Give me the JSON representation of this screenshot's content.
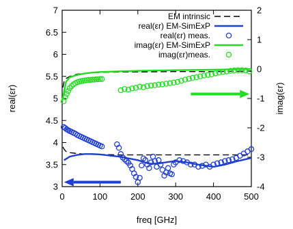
{
  "chart_data": {
    "type": "line",
    "xlabel": "freq [GHz]",
    "ylabel_left": "real(εr)",
    "ylabel_right": "imag(εr)",
    "xlim": [
      0,
      500
    ],
    "ylim_left": [
      3,
      7
    ],
    "ylim_right": [
      -4,
      2
    ],
    "x_ticks": [
      "0",
      "100",
      "200",
      "300",
      "400",
      "500"
    ],
    "y_left_ticks": [
      "3",
      "3.5",
      "4",
      "4.5",
      "5",
      "5.5",
      "6",
      "6.5",
      "7"
    ],
    "y_right_ticks": [
      "-4",
      "-3",
      "-2",
      "-1",
      "0",
      "1",
      "2"
    ],
    "grid": false,
    "legend_position": "top-right",
    "colors": {
      "intrinsic": "#000000",
      "real": "#1f3fd0",
      "imag": "#22dd22"
    },
    "series": [
      {
        "name": "EM intrinsic",
        "axis": "left",
        "style": "dashed",
        "x": [
          2,
          5,
          10,
          20,
          40,
          60,
          80,
          100,
          150,
          200,
          300,
          400,
          500
        ],
        "y": [
          3.9,
          3.85,
          3.8,
          3.77,
          3.75,
          3.74,
          3.73,
          3.73,
          3.72,
          3.72,
          3.72,
          3.72,
          3.72
        ]
      },
      {
        "name": "EM intrinsic",
        "axis": "left",
        "style": "dashed",
        "x": [
          2,
          5,
          10,
          20,
          40,
          60,
          80,
          100,
          150,
          200,
          300,
          400,
          500
        ],
        "y": [
          5.25,
          5.38,
          5.45,
          5.5,
          5.55,
          5.57,
          5.58,
          5.59,
          5.6,
          5.6,
          5.61,
          5.61,
          5.62
        ]
      },
      {
        "name": "real(εr) EM-SimExP",
        "axis": "left",
        "style": "solid",
        "x": [
          5,
          20,
          40,
          60,
          80,
          100,
          150,
          200,
          230,
          250,
          280,
          300,
          330,
          360,
          400,
          430,
          460,
          500
        ],
        "y": [
          3.6,
          3.68,
          3.72,
          3.74,
          3.74,
          3.73,
          3.68,
          3.6,
          3.52,
          3.52,
          3.56,
          3.58,
          3.55,
          3.5,
          3.45,
          3.5,
          3.57,
          3.65
        ]
      },
      {
        "name": "real(εr) meas.",
        "axis": "left",
        "style": "marker",
        "x": [
          4,
          8,
          12,
          16,
          20,
          25,
          30,
          35,
          40,
          45,
          50,
          55,
          60,
          65,
          70,
          75,
          80,
          85,
          90,
          95,
          100,
          105,
          145,
          150,
          155,
          160,
          165,
          170,
          175,
          180,
          185,
          190,
          195,
          200,
          205,
          210,
          215,
          220,
          225,
          230,
          235,
          240,
          245,
          250,
          255,
          260,
          265,
          270,
          275,
          280,
          285,
          290,
          295,
          300,
          310,
          320,
          330,
          340,
          350,
          360,
          370,
          380,
          390,
          400,
          410,
          420,
          430,
          440,
          450,
          460,
          470,
          480,
          490,
          500
        ],
        "y": [
          4.35,
          4.33,
          4.3,
          4.28,
          4.26,
          4.24,
          4.22,
          4.2,
          4.17,
          4.15,
          4.13,
          4.11,
          4.09,
          4.07,
          4.05,
          4.03,
          4.01,
          3.99,
          3.97,
          3.95,
          3.93,
          3.91,
          3.96,
          3.88,
          3.74,
          3.66,
          3.62,
          3.58,
          3.54,
          3.48,
          3.4,
          3.3,
          3.22,
          3.1,
          3.2,
          3.48,
          3.64,
          3.6,
          3.5,
          3.42,
          3.55,
          3.68,
          3.58,
          3.45,
          3.6,
          3.5,
          3.38,
          3.25,
          3.32,
          3.42,
          3.3,
          3.28,
          3.5,
          3.55,
          3.6,
          3.58,
          3.55,
          3.5,
          3.5,
          3.45,
          3.47,
          3.5,
          3.45,
          3.5,
          3.53,
          3.55,
          3.58,
          3.6,
          3.62,
          3.65,
          3.7,
          3.75,
          3.8,
          3.85
        ]
      },
      {
        "name": "imag(εr) EM-SimExP",
        "axis": "right",
        "style": "solid",
        "x": [
          0,
          10,
          20,
          40,
          60,
          80,
          100,
          150,
          200,
          250,
          300,
          350,
          400,
          450,
          500
        ],
        "y": [
          -1.1,
          -0.45,
          -0.28,
          -0.2,
          -0.15,
          -0.12,
          -0.1,
          -0.08,
          -0.06,
          -0.05,
          -0.04,
          -0.03,
          -0.02,
          -0.01,
          0.0
        ]
      },
      {
        "name": "imag(εr)meas.",
        "axis": "right",
        "style": "marker",
        "x": [
          4,
          8,
          12,
          16,
          20,
          25,
          30,
          35,
          40,
          45,
          50,
          55,
          60,
          65,
          70,
          75,
          80,
          85,
          90,
          95,
          100,
          105,
          155,
          165,
          175,
          185,
          195,
          205,
          215,
          225,
          235,
          245,
          255,
          265,
          275,
          285,
          295,
          305,
          315,
          325,
          335,
          345,
          355,
          365,
          375,
          385,
          395,
          405,
          415,
          425,
          435,
          445,
          455,
          465,
          475,
          485,
          495
        ],
        "y": [
          -1.1,
          -0.95,
          -0.85,
          -0.75,
          -0.65,
          -0.58,
          -0.52,
          -0.48,
          -0.45,
          -0.43,
          -0.41,
          -0.4,
          -0.39,
          -0.38,
          -0.37,
          -0.37,
          -0.36,
          -0.36,
          -0.35,
          -0.35,
          -0.34,
          -0.34,
          -0.72,
          -0.68,
          -0.7,
          -0.66,
          -0.64,
          -0.6,
          -0.62,
          -0.58,
          -0.56,
          -0.55,
          -0.53,
          -0.52,
          -0.5,
          -0.48,
          -0.46,
          -0.44,
          -0.4,
          -0.36,
          -0.33,
          -0.3,
          -0.28,
          -0.25,
          -0.22,
          -0.2,
          -0.18,
          -0.15,
          -0.12,
          -0.1,
          -0.08,
          -0.06,
          -0.05,
          -0.04,
          -0.04,
          -0.05,
          -0.08
        ]
      }
    ],
    "legend": [
      {
        "label": "EM intrinsic",
        "style": "dashed",
        "color": "#000000"
      },
      {
        "label": "real(εr) EM-SimExP",
        "style": "solid",
        "color": "#1f3fd0"
      },
      {
        "label": "real(εr) meas.",
        "style": "marker",
        "color": "#1f3fd0"
      },
      {
        "label": "imag(εr) EM-SimExP",
        "style": "solid",
        "color": "#22dd22"
      },
      {
        "label": "imag(εr)meas.",
        "style": "marker",
        "color": "#22dd22"
      }
    ],
    "annotations": [
      {
        "kind": "arrow",
        "direction": "left",
        "color": "#1f3fd0",
        "axis": "left",
        "x_from": 155,
        "x_to": 5,
        "y": 3.1
      },
      {
        "kind": "arrow",
        "direction": "right",
        "color": "#22dd22",
        "axis": "right",
        "x_from": 340,
        "x_to": 495,
        "y": -0.85
      }
    ]
  }
}
